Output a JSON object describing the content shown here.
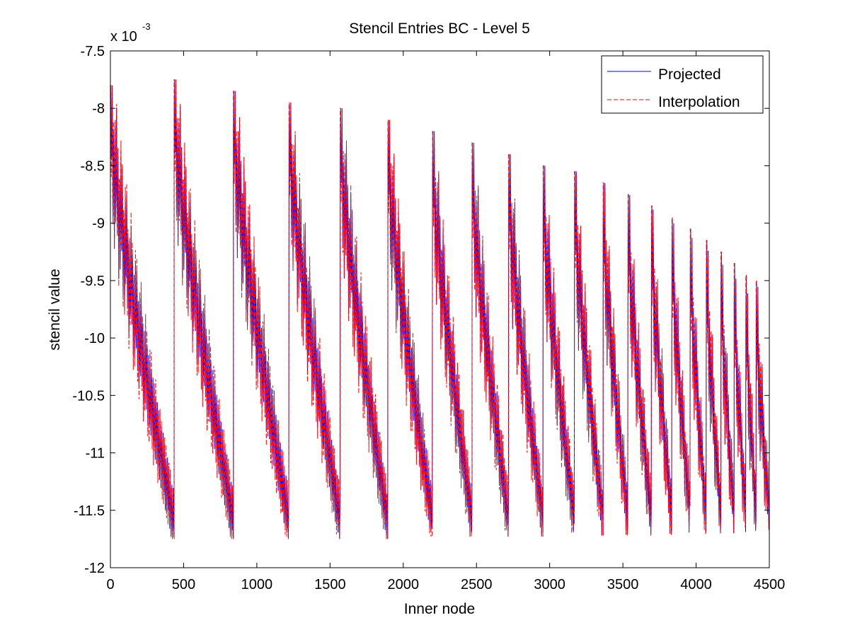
{
  "chart_data": {
    "type": "line",
    "title": "Stencil Entries BC - Level 5",
    "xlabel": "Inner node",
    "ylabel": "stencil value",
    "y_exponent": {
      "base": "x 10",
      "power": "-3"
    },
    "xlim": [
      0,
      4500
    ],
    "ylim": [
      -12,
      -7.5
    ],
    "x_ticks": [
      0,
      500,
      1000,
      1500,
      2000,
      2500,
      3000,
      3500,
      4000,
      4500
    ],
    "x_tick_labels": [
      "0",
      "500",
      "1000",
      "1500",
      "2000",
      "2500",
      "3000",
      "3500",
      "4000",
      "4500"
    ],
    "y_ticks": [
      -7.5,
      -8,
      -8.5,
      -9,
      -9.5,
      -10,
      -10.5,
      -11,
      -11.5,
      -12
    ],
    "y_tick_labels": [
      "-7.5",
      "-8",
      "-8.5",
      "-9",
      "-9.5",
      "-10",
      "-10.5",
      "-11",
      "-11.5",
      "-12"
    ],
    "grid": false,
    "legend": {
      "placement": "top-right",
      "entries": [
        "Projected",
        "Interpolation"
      ]
    },
    "segment_boundaries": [
      0,
      435,
      840,
      1220,
      1570,
      1895,
      2200,
      2470,
      2720,
      2955,
      3170,
      3365,
      3535,
      3695,
      3835,
      3960,
      4070,
      4170,
      4260,
      4340,
      4410,
      4500
    ],
    "segment_peak_values": [
      -7.8,
      -7.75,
      -7.85,
      -7.95,
      -8.0,
      -8.1,
      -8.2,
      -8.3,
      -8.4,
      -8.5,
      -8.55,
      -8.65,
      -8.75,
      -8.85,
      -8.95,
      -9.05,
      -9.15,
      -9.25,
      -9.35,
      -9.45,
      -9.5
    ],
    "segment_min_values": [
      -11.75,
      -11.75,
      -11.75,
      -11.75,
      -11.75,
      -11.73,
      -11.73,
      -11.73,
      -11.73,
      -11.73,
      -11.72,
      -11.72,
      -11.72,
      -11.72,
      -11.71,
      -11.71,
      -11.7,
      -11.7,
      -11.69,
      -11.68,
      -11.67
    ],
    "series": [
      {
        "name": "Projected",
        "color": "#0000ff",
        "style": "solid"
      },
      {
        "name": "Interpolation",
        "color": "#ff0000",
        "style": "dashed"
      }
    ]
  }
}
